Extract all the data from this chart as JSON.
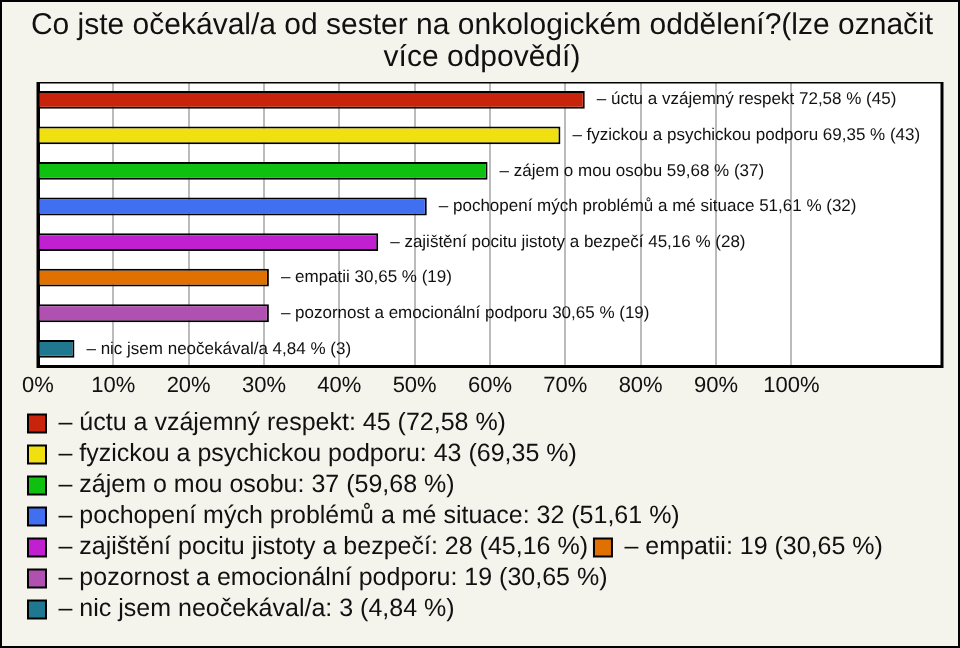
{
  "chart_data": {
    "type": "bar",
    "orientation": "horizontal",
    "title": "Co jste očekával/a od sester na onkologickém oddělení?(lze označit více odpovědí)",
    "categories": [
      null,
      null,
      null,
      null,
      null,
      null,
      null,
      null
    ],
    "series": [
      {
        "name": "– úctu a vzájemný respekt: 45 (72,58 %)",
        "color": "#c8240c",
        "values": [
          72.58,
          null,
          null,
          null,
          null,
          null,
          null,
          null
        ],
        "value_labels": [
          "– úctu a vzájemný respekt 72,58 % (45)",
          null,
          null,
          null,
          null,
          null,
          null,
          null
        ]
      },
      {
        "name": "– fyzickou a psychickou podporu: 43 (69,35 %)",
        "color": "#f0e010",
        "values": [
          null,
          69.35,
          null,
          null,
          null,
          null,
          null,
          null
        ],
        "value_labels": [
          null,
          "– fyzickou a psychickou podporu 69,35 % (43)",
          null,
          null,
          null,
          null,
          null,
          null
        ]
      },
      {
        "name": "– zájem o mou osobu: 37 (59,68 %)",
        "color": "#10c010",
        "values": [
          null,
          null,
          59.68,
          null,
          null,
          null,
          null,
          null
        ],
        "value_labels": [
          null,
          null,
          "– zájem o mou osobu 59,68 % (37)",
          null,
          null,
          null,
          null,
          null
        ]
      },
      {
        "name": "– pochopení mých problémů a mé situace: 32 (51,61 %)",
        "color": "#4070f0",
        "values": [
          null,
          null,
          null,
          51.61,
          null,
          null,
          null,
          null
        ],
        "value_labels": [
          null,
          null,
          null,
          "– pochopení mých problémů a mé situace 51,61 % (32)",
          null,
          null,
          null,
          null
        ]
      },
      {
        "name": "– zajištění pocitu jistoty a bezpečí: 28 (45,16 %)",
        "color": "#c020d0",
        "values": [
          null,
          null,
          null,
          null,
          45.16,
          null,
          null,
          null
        ],
        "value_labels": [
          null,
          null,
          null,
          null,
          "– zajištění pocitu jistoty a bezpečí 45,16 % (28)",
          null,
          null,
          null
        ]
      },
      {
        "name": "– empatii: 19 (30,65 %)",
        "color": "#e07000",
        "values": [
          null,
          null,
          null,
          null,
          null,
          30.65,
          null,
          null
        ],
        "value_labels": [
          null,
          null,
          null,
          null,
          null,
          "– empatii 30,65 % (19)",
          null,
          null
        ]
      },
      {
        "name": "– pozornost a emocionální podporu: 19 (30,65 %)",
        "color": "#b050b0",
        "values": [
          null,
          null,
          null,
          null,
          null,
          null,
          30.65,
          null
        ],
        "value_labels": [
          null,
          null,
          null,
          null,
          null,
          null,
          "– pozornost a emocionální podporu 30,65 % (19)",
          null
        ]
      },
      {
        "name": "– nic jsem neočekával/a: 3 (4,84 %)",
        "color": "#207890",
        "values": [
          null,
          null,
          null,
          null,
          null,
          null,
          null,
          4.84
        ],
        "value_labels": [
          null,
          null,
          null,
          null,
          null,
          null,
          null,
          "– nic jsem neočekával/a 4,84 % (3)"
        ]
      }
    ],
    "xlim": [
      0,
      120
    ],
    "xticks": [
      {
        "value": 0,
        "label": "0%"
      },
      {
        "value": 10,
        "label": "10%"
      },
      {
        "value": 20,
        "label": "20%"
      },
      {
        "value": 30,
        "label": "30%"
      },
      {
        "value": 40,
        "label": "40%"
      },
      {
        "value": 50,
        "label": "50%"
      },
      {
        "value": 60,
        "label": "60%"
      },
      {
        "value": 70,
        "label": "70%"
      },
      {
        "value": 80,
        "label": "80%"
      },
      {
        "value": 90,
        "label": "90%"
      },
      {
        "value": 100,
        "label": "100%"
      }
    ],
    "grid": "x",
    "legend": "bottom",
    "tick_labels": "x"
  }
}
